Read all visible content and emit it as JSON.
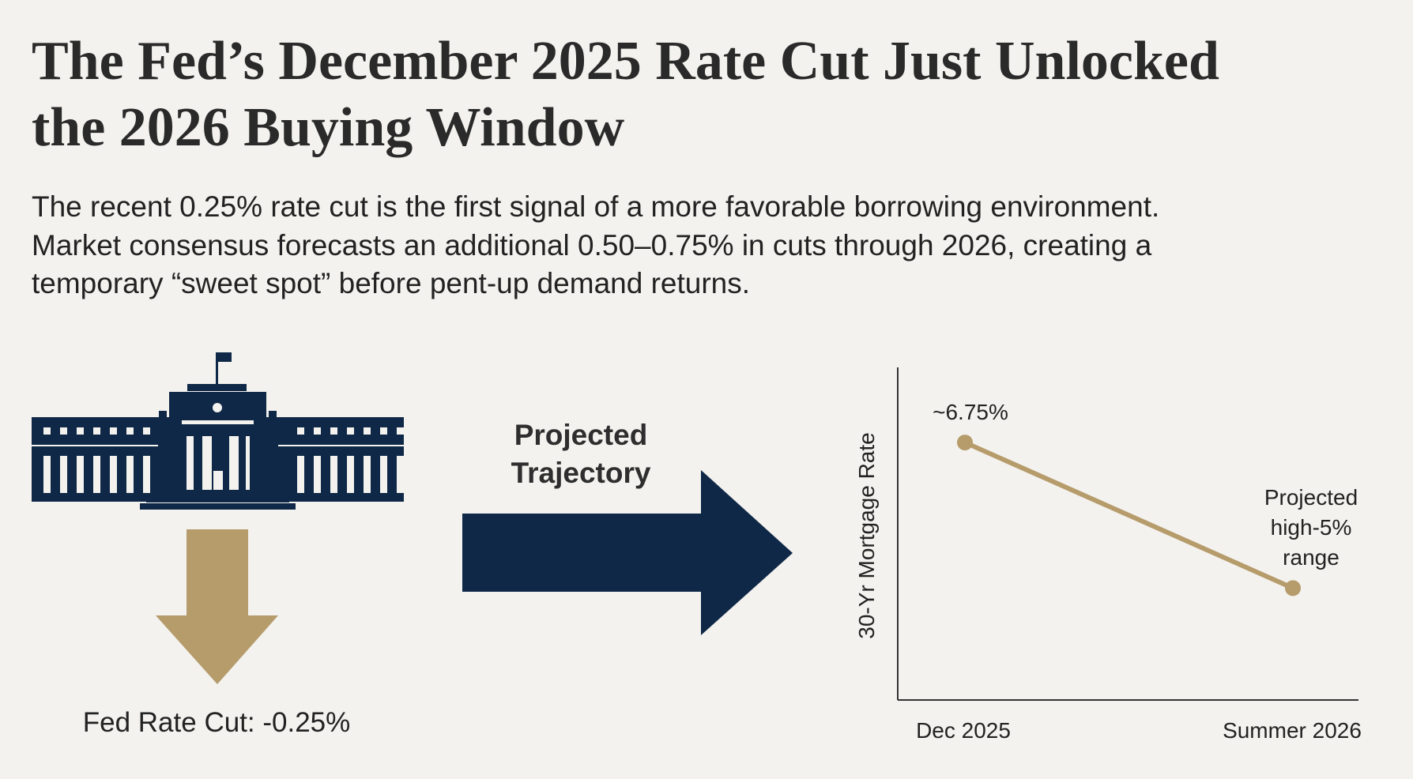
{
  "header": {
    "title_line1": "The Fed’s December 2025 Rate Cut Just Unlocked",
    "title_line2": "the 2026 Buying Window"
  },
  "body": {
    "line1": "The recent 0.25% rate cut is the first signal of a more favorable borrowing environment.",
    "line2": "Market consensus forecasts an additional 0.50–0.75% in cuts through 2026, creating a",
    "line3": "temporary “sweet spot” before pent-up demand returns."
  },
  "left_panel": {
    "icon": "federal-reserve-building-icon",
    "arrow_icon": "down-arrow-icon",
    "caption": "Fed Rate Cut: -0.25%"
  },
  "middle_panel": {
    "line1": "Projected",
    "line2": "Trajectory",
    "arrow_icon": "right-arrow-icon"
  },
  "colors": {
    "background": "#f3f2ee",
    "navy": "#0f2847",
    "gold": "#b69b6b",
    "text": "#222222"
  },
  "chart_data": {
    "type": "line",
    "categories": [
      "Dec 2025",
      "Summer 2026"
    ],
    "values": [
      6.75,
      5.8
    ],
    "point_labels": [
      "~6.75%",
      [
        "Projected",
        "high-5%",
        "range"
      ]
    ],
    "ylabel": "30-Yr Mortgage Rate",
    "xlabel": "",
    "ylim": [
      5.07,
      7.24
    ],
    "grid": false,
    "y_ticks_shown": false
  }
}
